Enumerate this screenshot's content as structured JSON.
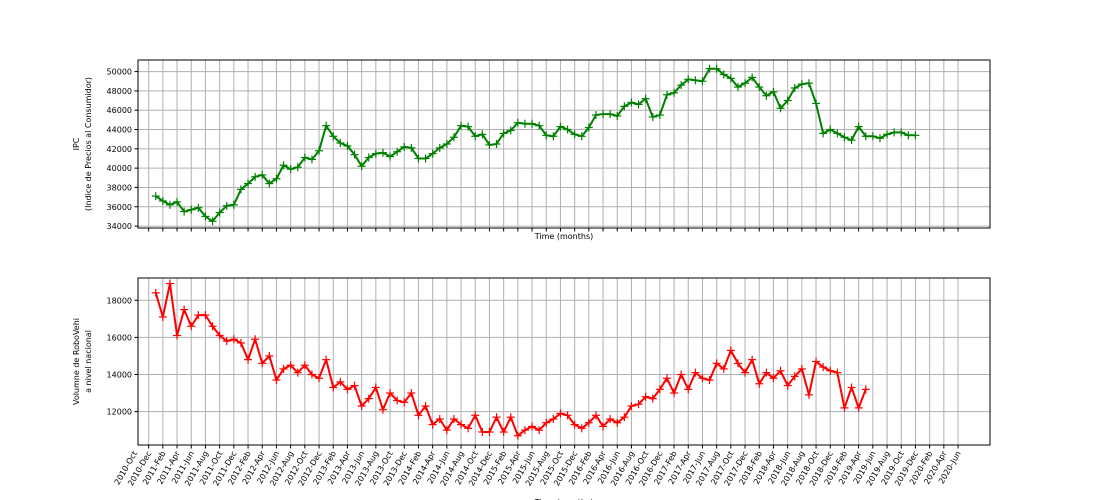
{
  "chart_data": [
    {
      "type": "line",
      "xlabel": "Time (months)",
      "ylabel": [
        "IPC",
        "(Indice de Precios al Consumidor)"
      ],
      "ylim": [
        33800,
        51200
      ],
      "yticks": [
        34000,
        36000,
        38000,
        40000,
        42000,
        44000,
        46000,
        48000,
        50000
      ],
      "xlim_month_index": [
        -2.5,
        117.5
      ],
      "x_start": "2011-Jan",
      "grid": true,
      "series": [
        {
          "color": "#008000",
          "marker": "+",
          "values": [
            37100,
            36600,
            36200,
            36500,
            35500,
            35700,
            35900,
            35000,
            34500,
            35400,
            36100,
            36200,
            37800,
            38400,
            39100,
            39300,
            38400,
            38900,
            40300,
            39900,
            40100,
            41100,
            40900,
            41800,
            44400,
            43300,
            42600,
            42300,
            41400,
            40200,
            41100,
            41500,
            41600,
            41200,
            41700,
            42200,
            42100,
            41000,
            41000,
            41500,
            42100,
            42500,
            43200,
            44400,
            44300,
            43300,
            43500,
            42400,
            42500,
            43600,
            43900,
            44700,
            44600,
            44600,
            44400,
            43400,
            43300,
            44300,
            44000,
            43500,
            43300,
            44200,
            45500,
            45600,
            45600,
            45400,
            46400,
            46800,
            46600,
            47200,
            45300,
            45500,
            47600,
            47800,
            48600,
            49200,
            49100,
            49000,
            50300,
            50300,
            49700,
            49300,
            48400,
            48800,
            49400,
            48400,
            47500,
            47900,
            46200,
            47000,
            48300,
            48700,
            48800,
            46700,
            43600,
            44000,
            43600,
            43200,
            42900,
            44300,
            43300,
            43300,
            43100,
            43500,
            43700,
            43700,
            43400,
            43400
          ]
        }
      ]
    },
    {
      "type": "line",
      "xlabel": "Time (months)",
      "ylabel": [
        "Volumne de RoboVehi",
        "a nivel nacional"
      ],
      "ylim": [
        10200,
        19200
      ],
      "yticks": [
        12000,
        14000,
        16000,
        18000
      ],
      "xlim_month_index": [
        -2.5,
        117.5
      ],
      "x_start": "2011-Jan",
      "grid": true,
      "series": [
        {
          "color": "#ff0000",
          "marker": "+",
          "values": [
            18400,
            17100,
            18900,
            16100,
            17500,
            16600,
            17200,
            17200,
            16600,
            16100,
            15800,
            15900,
            15700,
            14800,
            15900,
            14600,
            15000,
            13700,
            14300,
            14500,
            14100,
            14500,
            14000,
            13800,
            14800,
            13300,
            13600,
            13200,
            13400,
            12300,
            12700,
            13300,
            12100,
            13000,
            12600,
            12500,
            13000,
            11800,
            12300,
            11300,
            11600,
            11000,
            11600,
            11300,
            11100,
            11800,
            10900,
            10900,
            11700,
            10900,
            11700,
            10700,
            11000,
            11200,
            11000,
            11400,
            11600,
            11900,
            11800,
            11300,
            11100,
            11400,
            11800,
            11200,
            11600,
            11400,
            11700,
            12300,
            12400,
            12800,
            12700,
            13200,
            13800,
            13000,
            14000,
            13200,
            14100,
            13800,
            13700,
            14600,
            14300,
            15300,
            14600,
            14100,
            14800,
            13500,
            14100,
            13800,
            14200,
            13400,
            13900,
            14300,
            12900,
            14700,
            14400,
            14200,
            14100,
            12200,
            13300,
            12200,
            13200
          ]
        }
      ],
      "tick_labels": [
        "2010-Oct",
        "2010-Dec",
        "2011-Feb",
        "2011-Apr",
        "2011-Jun",
        "2011-Aug",
        "2011-Oct",
        "2011-Dec",
        "2012-Feb",
        "2012-Apr",
        "2012-Jun",
        "2012-Aug",
        "2012-Oct",
        "2012-Dec",
        "2013-Feb",
        "2013-Apr",
        "2013-Jun",
        "2013-Aug",
        "2013-Oct",
        "2013-Dec",
        "2014-Feb",
        "2014-Apr",
        "2014-Jun",
        "2014-Aug",
        "2014-Oct",
        "2014-Dec",
        "2015-Feb",
        "2015-Apr",
        "2015-Jun",
        "2015-Aug",
        "2015-Oct",
        "2015-Dec",
        "2016-Feb",
        "2016-Apr",
        "2016-Jun",
        "2016-Aug",
        "2016-Oct",
        "2016-Dec",
        "2017-Feb",
        "2017-Apr",
        "2017-Jun",
        "2017-Aug",
        "2017-Oct",
        "2017-Dec",
        "2018-Feb",
        "2018-Apr",
        "2018-Jun",
        "2018-Aug",
        "2018-Oct",
        "2018-Dec",
        "2019-Feb",
        "2019-Apr",
        "2019-Jun",
        "2019-Aug",
        "2019-Oct",
        "2019-Dec",
        "2020-Feb",
        "2020-Apr",
        "2020-Jun"
      ]
    }
  ]
}
